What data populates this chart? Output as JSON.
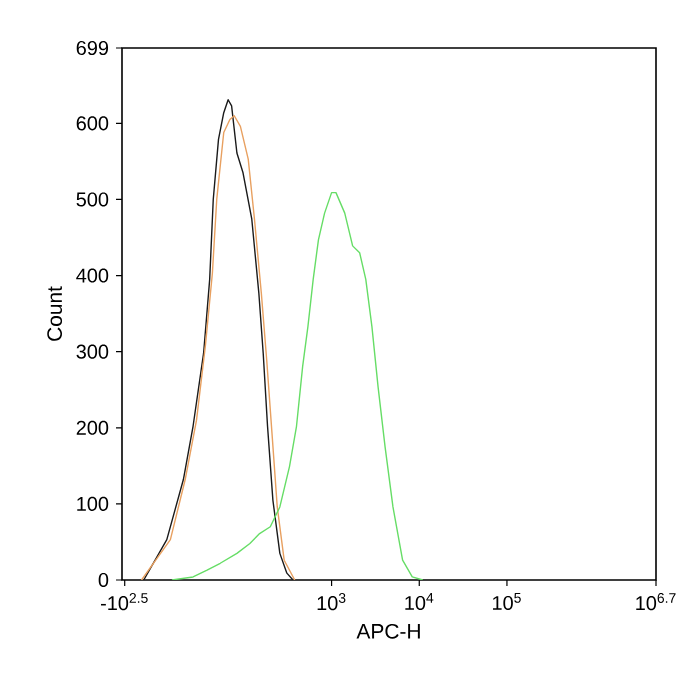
{
  "chart_data": {
    "type": "line",
    "xlabel": "APC-H",
    "ylabel": "Count",
    "log": "x",
    "xlim": [
      4.07,
      5011872
    ],
    "ylim": [
      0,
      699
    ],
    "xticks": [
      {
        "value": 4.37,
        "label": "-10$^{2.5}$"
      },
      {
        "value": 1000,
        "label": "10$^{3}$"
      },
      {
        "value": 10000,
        "label": "10$^{4}$"
      },
      {
        "value": 100000,
        "label": "10$^{5}$"
      },
      {
        "value": 5011872,
        "label": "10$^{6.7}$"
      }
    ],
    "yticks": [
      0,
      100,
      200,
      300,
      400,
      500,
      600,
      699
    ],
    "grid": false,
    "marker": "none",
    "line_style": "solid",
    "series": [
      {
        "color": "#1a1a1a",
        "x": [
          7.2,
          13.2,
          20.4,
          26.3,
          34.7,
          40.7,
          44.7,
          51.3,
          58.9,
          66.1,
          72.4,
          83.2,
          97.7,
          123,
          148,
          166,
          186,
          214,
          257,
          309,
          363
        ],
        "values": [
          0,
          53,
          132,
          202,
          298,
          395,
          500,
          579,
          614,
          631,
          623,
          561,
          535,
          474,
          377,
          298,
          202,
          105,
          35,
          9,
          0
        ]
      },
      {
        "color": "#e8a060",
        "x": [
          6.8,
          14.5,
          21.4,
          28.8,
          36.3,
          43.7,
          49.0,
          58.9,
          69.2,
          77.6,
          91.2,
          112,
          132,
          158,
          182,
          209,
          240,
          288,
          380
        ],
        "values": [
          0,
          53,
          132,
          210,
          307,
          403,
          500,
          588,
          605,
          610,
          596,
          553,
          474,
          377,
          289,
          193,
          96,
          26,
          0
        ]
      },
      {
        "color": "#66dd66",
        "x": [
          15.1,
          26.3,
          38.0,
          53.7,
          83.2,
          117,
          151,
          200,
          257,
          331,
          398,
          468,
          537,
          617,
          708,
          832,
          1000,
          1122,
          1413,
          1738,
          2089,
          2455,
          2884,
          3388,
          4074,
          5012,
          6457,
          8318,
          10965
        ],
        "values": [
          0,
          4,
          13,
          22,
          35,
          48,
          61,
          70,
          96,
          149,
          202,
          281,
          333,
          395,
          447,
          482,
          509,
          509,
          482,
          439,
          430,
          395,
          333,
          254,
          175,
          96,
          26,
          4,
          0
        ]
      }
    ]
  }
}
